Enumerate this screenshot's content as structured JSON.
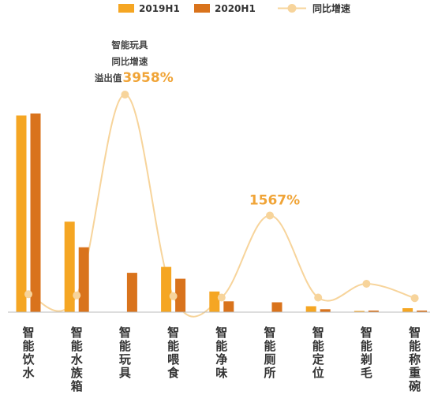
{
  "chart_data": {
    "type": "bar",
    "categories": [
      "智能饮水",
      "智能水族箱",
      "智能玩具",
      "智能喂食",
      "智能净味",
      "智能厕所",
      "智能定位",
      "智能剃毛",
      "智能称重碗"
    ],
    "series": [
      {
        "name": "2019H1",
        "type": "bar",
        "color": "#f5a623",
        "values": [
          100,
          46,
          0,
          23,
          10.5,
          0,
          3,
          0.3,
          2
        ]
      },
      {
        "name": "2020H1",
        "type": "bar",
        "color": "#d9731c",
        "values": [
          101,
          33,
          20,
          17,
          5.5,
          5,
          1.5,
          0.8,
          0.8
        ]
      },
      {
        "name": "同比增速",
        "type": "line",
        "color": "#f7d49b",
        "unit": "%",
        "values": [
          10,
          -10,
          3958,
          -25,
          -50,
          1567,
          -50,
          200,
          -60
        ]
      }
    ],
    "annotations": [
      {
        "category": "智能玩具",
        "lines": [
          "智能玩具",
          "同比增速",
          "溢出值"
        ],
        "value_label": "3958%"
      },
      {
        "category": "智能厕所",
        "value_label": "1567%"
      }
    ],
    "legend": {
      "position": "top",
      "labels": [
        "2019H1",
        "2020H1",
        "同比增速"
      ]
    },
    "grid": false
  }
}
